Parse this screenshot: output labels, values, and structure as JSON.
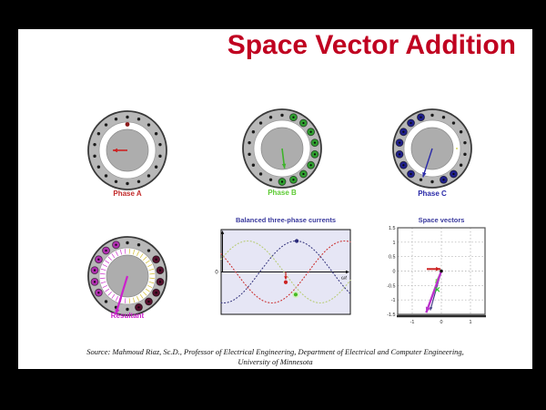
{
  "slide": {
    "title": "Space Vector Addition",
    "title_color": "#c00020",
    "source_line1": "Source:  Mahmoud Riaz, Sc.D., Professor of Electrical Engineering, Department of Electrical and Computer Engineering,",
    "source_line2": "University of Minnesota"
  },
  "motors": [
    {
      "name": "phase-a",
      "label": "Phase A",
      "label_color": "#c22a2a",
      "stator_color": "#b8b8b8",
      "rotor_color": "#adadad",
      "small_dot_color": "#1c1c1c",
      "big_arcs": [],
      "special_dots": [
        {
          "angle": 90,
          "radius": 28.5,
          "r": 2.4,
          "color": "#8b1a1a"
        }
      ],
      "ring_marks": [
        {
          "type": "dots",
          "from": 0,
          "to": 360,
          "color": "#c9c92e"
        }
      ],
      "arrow": {
        "angle": 180,
        "len": 16,
        "color": "#cc2222",
        "width": 1.6,
        "head": 5
      }
    },
    {
      "name": "phase-b",
      "label": "Phase B",
      "label_color": "#5ecb35",
      "stator_color": "#b8b8b8",
      "rotor_color": "#adadad",
      "small_dot_color": "#1c1c1c",
      "big_arcs": [
        {
          "from": 265,
          "to": 75,
          "color": "#2f9e2f"
        }
      ],
      "special_dots": [],
      "ring_marks": [
        {
          "type": "dots",
          "from": 0,
          "to": 360,
          "color": "#3db32a"
        }
      ],
      "arrow": {
        "angle": -83,
        "len": 22,
        "color": "#3db32a",
        "width": 1.6,
        "head": 5
      }
    },
    {
      "name": "phase-c",
      "label": "Phase C",
      "label_color": "#2a2aa8",
      "stator_color": "#b8b8b8",
      "rotor_color": "#adadad",
      "small_dot_color": "#1c1c1c",
      "big_arcs": [
        {
          "from": 95,
          "to": 235,
          "color": "#1f1f8a"
        },
        {
          "from": 280,
          "to": 325,
          "color": "#1f1f8a"
        }
      ],
      "special_dots": [],
      "ring_marks": [
        {
          "type": "ticks",
          "from": 0,
          "to": 360,
          "color": "#7070b8"
        },
        {
          "type": "dots",
          "from": 0,
          "to": 360,
          "color": "#c9c92e",
          "shift": 5
        }
      ],
      "arrow": {
        "angle": -108,
        "len": 33,
        "color": "#2a2aa8",
        "width": 1.4,
        "head": 5
      }
    },
    {
      "name": "resultant",
      "label": "Resultant",
      "label_color": "#cc22cc",
      "stator_color": "#b8b8b8",
      "rotor_color": "#adadad",
      "small_dot_color": "#1c1c1c",
      "big_arcs": [
        {
          "from": 95,
          "to": 220,
          "color": "#b030b0"
        },
        {
          "from": 275,
          "to": 40,
          "color": "#56102e"
        }
      ],
      "special_dots": [],
      "ring_marks": [
        {
          "type": "ticks",
          "from": 90,
          "to": 270,
          "color": "#cc33cc"
        },
        {
          "type": "ticks",
          "from": 270,
          "to": 90,
          "color": "#d2bc2e"
        }
      ],
      "arrow": {
        "angle": -107,
        "len": 44,
        "color": "#cc22cc",
        "width": 2.2,
        "head": 6
      }
    }
  ],
  "chart_data": [
    {
      "type": "line",
      "title": "Balanced three-phase currents",
      "title_color": "#3a3a9e",
      "bg": "#e6e6f5",
      "xlabel": "ωt",
      "zero_label": "0",
      "x_span_periods": 0.89,
      "amplitude": 1.0,
      "grid": false,
      "series": [
        {
          "name": "ia",
          "color": "#cc3333",
          "peak_frac": 0.955
        },
        {
          "name": "ib",
          "color": "#b8cc77",
          "peak_frac": 0.205
        },
        {
          "name": "ic",
          "color": "#3a3a80",
          "peak_frac": 0.58
        }
      ],
      "markers": [
        {
          "series": "ic",
          "x_frac": 0.585,
          "value": 1.0,
          "color": "#2a2a7a"
        },
        {
          "series": "ia",
          "x_frac": 0.5,
          "value": -0.33,
          "color": "#cc2222",
          "arrow_from_axis": true
        },
        {
          "series": "ib",
          "x_frac": 0.577,
          "value": -0.73,
          "color": "#44bb22",
          "halo": "#d6f0c4"
        }
      ]
    },
    {
      "type": "vector",
      "title": "Space vectors",
      "title_color": "#3a3a9e",
      "xlim": [
        -1.5,
        1.5
      ],
      "ylim": [
        -1.5,
        1.5
      ],
      "grid": true,
      "xtick_vals": [
        -1,
        0,
        1
      ],
      "xtick_labels": [
        "-1",
        "0",
        "1"
      ],
      "ytick_vals": [
        1.5,
        1,
        0.5,
        0,
        -0.5,
        -1,
        -1.5
      ],
      "ytick_labels": [
        "1.5",
        "1",
        "0.5",
        "0",
        "-0.5",
        "-1",
        "-1.5"
      ],
      "vectors": [
        {
          "name": "phase-a-vector",
          "color": "#cc2222",
          "from": [
            -0.5,
            0.07
          ],
          "to": [
            -0.03,
            0.07
          ],
          "width": 2.0,
          "head": 5
        },
        {
          "name": "phase-b-vector",
          "color": "#77dd55",
          "from": [
            0,
            0
          ],
          "to": [
            -0.2,
            -0.42
          ],
          "width": 1.4,
          "head": 4.5
        },
        {
          "name": "phase-c-vector",
          "color": "#3a3a80",
          "from": [
            0,
            0
          ],
          "to": [
            -0.38,
            -1.36
          ],
          "width": 1.1,
          "head": 3.5
        },
        {
          "name": "resultant-vector",
          "color": "#bb33cc",
          "from": [
            0,
            0
          ],
          "to": [
            -0.52,
            -1.44
          ],
          "width": 2.4,
          "head": 6
        }
      ],
      "markers": [
        {
          "type": "dot",
          "at": [
            0,
            0
          ],
          "color": "#111111"
        },
        {
          "type": "x",
          "at": [
            -0.14,
            -0.64
          ],
          "color": "#33cc33"
        }
      ]
    }
  ]
}
